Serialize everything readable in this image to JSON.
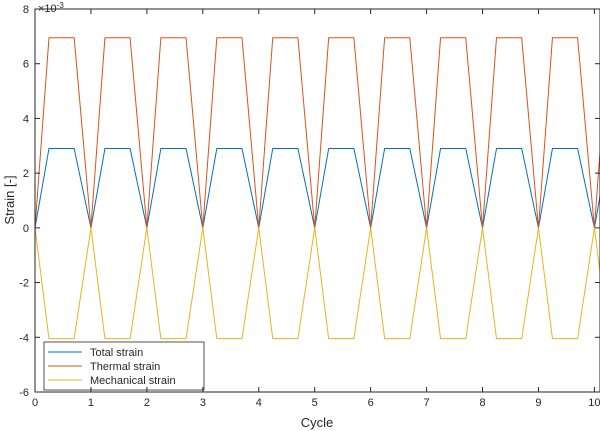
{
  "chart_data": {
    "type": "line",
    "xlabel": "Cycle",
    "ylabel": "Strain [-]",
    "y_exponent": "×10",
    "y_exponent_power": "-3",
    "xlim": [
      0,
      10.1
    ],
    "ylim": [
      -6,
      8
    ],
    "xticks": [
      0,
      1,
      2,
      3,
      4,
      5,
      6,
      7,
      8,
      9,
      10
    ],
    "yticks": [
      -6,
      -4,
      -2,
      0,
      2,
      4,
      6,
      8
    ],
    "xtick_labels": [
      "0",
      "1",
      "2",
      "3",
      "4",
      "5",
      "6",
      "7",
      "8",
      "9",
      "10"
    ],
    "ytick_labels": [
      "-6",
      "-4",
      "-2",
      "0",
      "2",
      "4",
      "6",
      "8"
    ],
    "legend_position": "bottom-left",
    "cycle_shape": {
      "x": [
        0,
        0.25,
        0.7,
        1.0
      ],
      "description_hidden": true
    },
    "series": [
      {
        "name": "Total strain",
        "color": "#0072BD",
        "peak": 2.9
      },
      {
        "name": "Thermal strain",
        "color": "#D95319",
        "peak": 6.95
      },
      {
        "name": "Mechanical strain",
        "color": "#EDB120",
        "peak": -4.05
      }
    ],
    "num_cycles": 10,
    "x_end": 10.1
  }
}
